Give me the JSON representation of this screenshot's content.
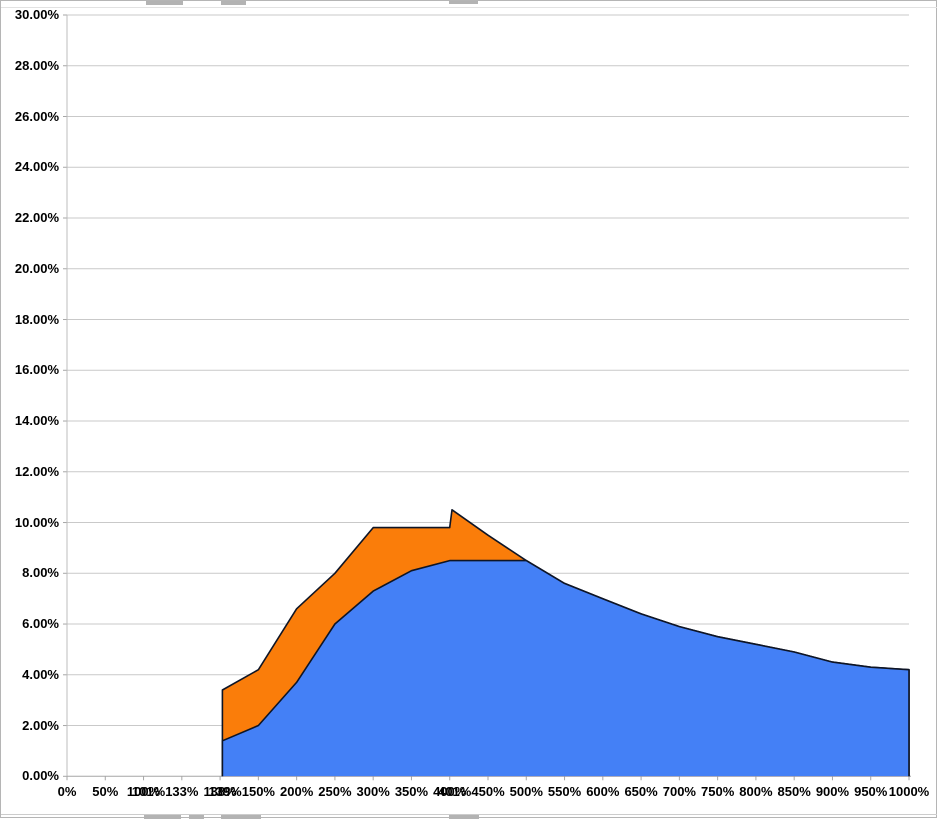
{
  "window": {
    "background": "#ffffff",
    "border_color": "#b5b5b5"
  },
  "chart_data": {
    "type": "area",
    "title": "",
    "xlabel": "",
    "ylabel": "",
    "grid": true,
    "legend": "none",
    "colors": {
      "blue_fill": "#4480F6",
      "orange_fill": "#FA7D0A",
      "series_outline": "#0E1526",
      "gridline": "#C9C9C9",
      "axis_line": "#A6A6A6",
      "label_text": "#000000"
    },
    "y_axis": {
      "min": 0,
      "max": 30,
      "step": 2,
      "labels": [
        "30.00%",
        "28.00%",
        "26.00%",
        "24.00%",
        "22.00%",
        "20.00%",
        "18.00%",
        "16.00%",
        "14.00%",
        "12.00%",
        "10.00%",
        "8.00%",
        "6.00%",
        "4.00%",
        "2.00%",
        "0.00%"
      ]
    },
    "x_axis": {
      "labels": [
        "0%",
        "50%",
        "100%",
        "133%",
        "138%",
        "150%",
        "200%",
        "250%",
        "300%",
        "350%",
        "400%",
        "450%",
        "500%",
        "550%",
        "600%",
        "650%",
        "700%",
        "750%",
        "800%",
        "850%",
        "900%",
        "950%",
        "1000%"
      ],
      "overlapping_labels": [
        {
          "after": "100%",
          "label": "101%"
        },
        {
          "after": "138%",
          "label": "139%"
        },
        {
          "after": "400%",
          "label": "401%"
        }
      ]
    },
    "series": [
      {
        "id": "orange-area",
        "fill": "#FA7D0A",
        "points": [
          {
            "x": "139%",
            "value": 3.4
          },
          {
            "x": "150%",
            "value": 4.2
          },
          {
            "x": "200%",
            "value": 6.6
          },
          {
            "x": "250%",
            "value": 8.0
          },
          {
            "x": "300%",
            "value": 9.8
          },
          {
            "x": "350%",
            "value": 9.8
          },
          {
            "x": "400%",
            "value": 9.8
          },
          {
            "x": "401%",
            "value": 10.5
          },
          {
            "x": "450%",
            "value": 9.5
          },
          {
            "x": "500%",
            "value": 8.5
          },
          {
            "x": "550%",
            "value": 7.6
          },
          {
            "x": "600%",
            "value": 7.0
          },
          {
            "x": "650%",
            "value": 6.4
          },
          {
            "x": "700%",
            "value": 5.9
          },
          {
            "x": "750%",
            "value": 5.5
          },
          {
            "x": "800%",
            "value": 5.2
          },
          {
            "x": "850%",
            "value": 4.9
          },
          {
            "x": "900%",
            "value": 4.5
          },
          {
            "x": "950%",
            "value": 4.3
          },
          {
            "x": "1000%",
            "value": 4.2
          }
        ]
      },
      {
        "id": "blue-area",
        "fill": "#4480F6",
        "points": [
          {
            "x": "139%",
            "value": 1.4
          },
          {
            "x": "150%",
            "value": 2.0
          },
          {
            "x": "200%",
            "value": 3.7
          },
          {
            "x": "250%",
            "value": 6.0
          },
          {
            "x": "300%",
            "value": 7.3
          },
          {
            "x": "350%",
            "value": 8.1
          },
          {
            "x": "400%",
            "value": 8.5
          },
          {
            "x": "401%",
            "value": 8.5
          },
          {
            "x": "450%",
            "value": 8.5
          },
          {
            "x": "500%",
            "value": 8.5
          },
          {
            "x": "550%",
            "value": 7.6
          },
          {
            "x": "600%",
            "value": 7.0
          },
          {
            "x": "650%",
            "value": 6.4
          },
          {
            "x": "700%",
            "value": 5.9
          },
          {
            "x": "750%",
            "value": 5.5
          },
          {
            "x": "800%",
            "value": 5.2
          },
          {
            "x": "850%",
            "value": 4.9
          },
          {
            "x": "900%",
            "value": 4.5
          },
          {
            "x": "950%",
            "value": 4.3
          },
          {
            "x": "1000%",
            "value": 4.2
          }
        ]
      }
    ]
  }
}
